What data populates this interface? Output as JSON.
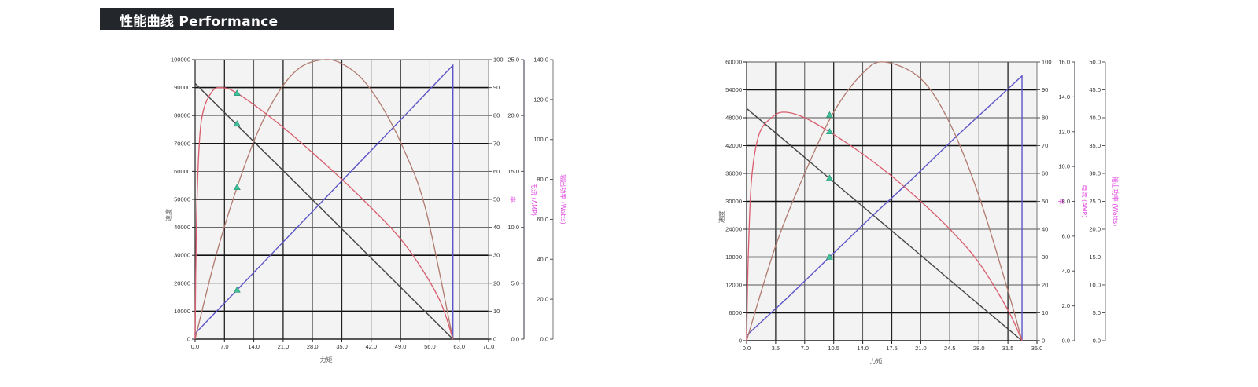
{
  "header": {
    "title": "性能曲线 Performance"
  },
  "chart_data": [
    {
      "type": "line",
      "title": "",
      "xlabel": "力矩",
      "ylabel": "速度",
      "xlim": [
        0,
        70
      ],
      "ylim": [
        0,
        100000
      ],
      "x_ticks": [
        "0.0",
        "7.0",
        "14.0",
        "21.0",
        "28.0",
        "35.0",
        "42.0",
        "49.0",
        "56.0",
        "63.0",
        "70.0"
      ],
      "y_ticks": [
        "0",
        "10000",
        "20000",
        "30000",
        "40000",
        "50000",
        "60000",
        "70000",
        "80000",
        "90000",
        "100000"
      ],
      "secondary_axes": [
        {
          "label": "率",
          "range": [
            0,
            100
          ],
          "ticks": [
            "0",
            "10",
            "20",
            "30",
            "40",
            "50",
            "60",
            "70",
            "80",
            "90",
            "100"
          ]
        },
        {
          "label": "电流 (AMP)",
          "range": [
            0,
            25
          ],
          "ticks": [
            "0.0",
            "5.0",
            "10.0",
            "15.0",
            "20.0",
            "25.0"
          ]
        },
        {
          "label": "输出功率 (Watts)",
          "range": [
            0,
            140
          ],
          "ticks": [
            "0.0",
            "20.0",
            "40.0",
            "60.0",
            "80.0",
            "100.0",
            "120.0",
            "140.0"
          ]
        }
      ],
      "grid": true,
      "series": [
        {
          "name": "Speed",
          "axis": "speed",
          "color": "#444444",
          "x": [
            0,
            10,
            20,
            30,
            40,
            50,
            61.5
          ],
          "values": [
            91500,
            76600,
            61800,
            46900,
            32000,
            17100,
            0
          ]
        },
        {
          "name": "Current",
          "axis": "current",
          "color": "#5b55c8",
          "x": [
            0,
            10,
            20,
            30,
            40,
            50,
            61.5,
            61.5
          ],
          "values": [
            0.5,
            4.4,
            8.3,
            12.2,
            16.1,
            20.0,
            24.5,
            0
          ]
        },
        {
          "name": "Output Power",
          "axis": "power",
          "color": "#b07a6e",
          "x": [
            0,
            5,
            10,
            15,
            20,
            25,
            30.7,
            35,
            40,
            45,
            50,
            55,
            61.5
          ],
          "values": [
            0,
            42,
            76,
            104,
            124,
            136,
            140,
            138,
            130,
            115,
            94,
            65,
            0
          ]
        },
        {
          "name": "Efficiency",
          "axis": "efficiency",
          "color": "#d95c6c",
          "x": [
            0,
            0.3,
            1,
            2,
            4,
            6,
            10,
            20,
            30,
            40,
            50,
            58,
            61.5
          ],
          "values": [
            0,
            40,
            70,
            82,
            88.5,
            90,
            88,
            77,
            64,
            50,
            34,
            15,
            0
          ]
        }
      ],
      "markers": [
        {
          "series": "Efficiency",
          "x": 10,
          "value": 88
        },
        {
          "series": "Speed",
          "x": 10,
          "value": 77000
        },
        {
          "series": "Output Power",
          "x": 10,
          "value": 76
        },
        {
          "series": "Current",
          "x": 10,
          "value": 4.4
        }
      ]
    },
    {
      "type": "line",
      "title": "",
      "xlabel": "力矩",
      "ylabel": "速度",
      "xlim": [
        0,
        35
      ],
      "ylim": [
        0,
        60000
      ],
      "x_ticks": [
        "0.0",
        "3.5",
        "7.0",
        "10.5",
        "14.0",
        "17.5",
        "21.0",
        "24.5",
        "28.0",
        "31.5",
        "35.0"
      ],
      "y_ticks": [
        "0",
        "6000",
        "12000",
        "18000",
        "24000",
        "30000",
        "36000",
        "42000",
        "48000",
        "54000",
        "60000"
      ],
      "secondary_axes": [
        {
          "label": "率",
          "range": [
            0,
            100
          ],
          "ticks": [
            "0",
            "10",
            "20",
            "30",
            "40",
            "50",
            "60",
            "70",
            "80",
            "90",
            "100"
          ]
        },
        {
          "label": "电流 (AMP)",
          "range": [
            0,
            16
          ],
          "ticks": [
            "0.0",
            "2.0",
            "4.0",
            "6.0",
            "8.0",
            "10.0",
            "12.0",
            "14.0",
            "16.0"
          ]
        },
        {
          "label": "输出功率 (Watts)",
          "range": [
            0,
            50
          ],
          "ticks": [
            "0.0",
            "5.0",
            "10.0",
            "15.0",
            "20.0",
            "25.0",
            "30.0",
            "35.0",
            "40.0",
            "45.0",
            "50.0"
          ]
        }
      ],
      "grid": true,
      "series": [
        {
          "name": "Speed",
          "axis": "speed",
          "color": "#444444",
          "x": [
            0,
            5,
            10,
            15,
            20,
            25,
            33.2
          ],
          "values": [
            50000,
            42500,
            34900,
            27400,
            19900,
            12300,
            0
          ]
        },
        {
          "name": "Current",
          "axis": "current",
          "color": "#5b55c8",
          "x": [
            0,
            5,
            10,
            15,
            20,
            25,
            33.2,
            33.2
          ],
          "values": [
            0.3,
            2.5,
            4.8,
            7.1,
            9.3,
            11.6,
            15.2,
            0
          ]
        },
        {
          "name": "Output Power",
          "axis": "power",
          "color": "#b07a6e",
          "x": [
            0,
            3.5,
            7,
            10.5,
            14,
            16.6,
            21,
            24.5,
            28,
            31.5,
            33.2
          ],
          "values": [
            0,
            17,
            30,
            41,
            48,
            50,
            47,
            39,
            26,
            9,
            0
          ]
        },
        {
          "name": "Efficiency",
          "axis": "efficiency",
          "color": "#d95c6c",
          "x": [
            0,
            0.2,
            0.6,
            1.5,
            3,
            4.5,
            7,
            10.5,
            14,
            17.5,
            21,
            24.5,
            28,
            31.5,
            33.2
          ],
          "values": [
            0,
            30,
            58,
            74,
            80,
            82,
            80,
            74,
            67,
            59,
            50,
            40,
            28,
            11,
            0
          ]
        }
      ],
      "markers": [
        {
          "series": "Output Power",
          "x": 10,
          "value": 40.5
        },
        {
          "series": "Efficiency",
          "x": 10,
          "value": 75
        },
        {
          "series": "Speed",
          "x": 10,
          "value": 35000
        },
        {
          "series": "Current",
          "x": 10,
          "value": 4.8
        }
      ]
    }
  ]
}
